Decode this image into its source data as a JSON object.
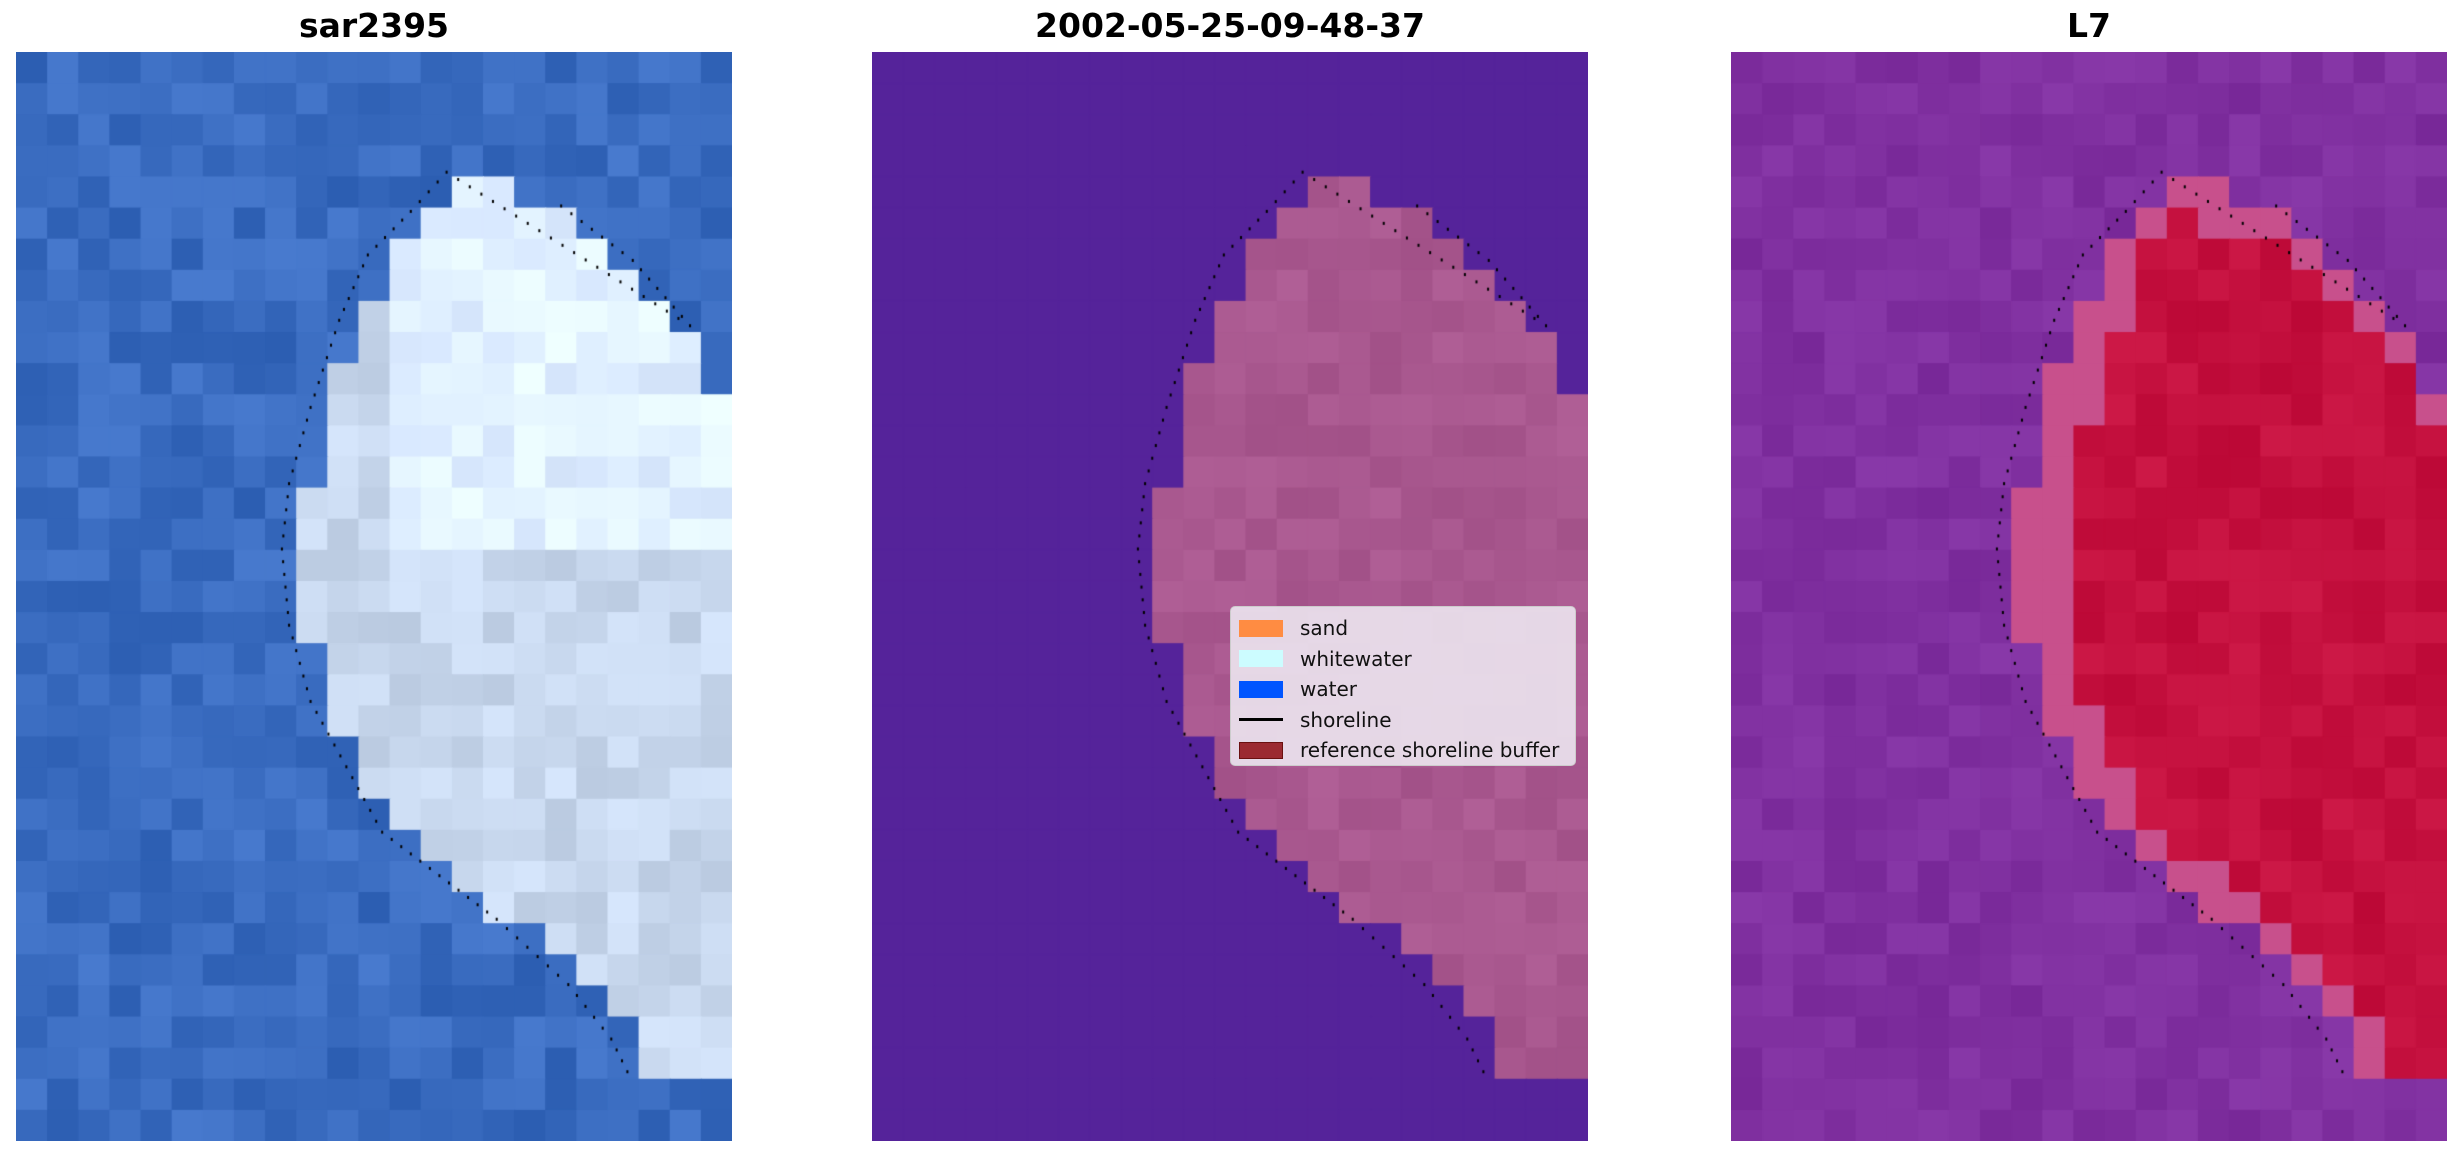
{
  "panels": [
    {
      "title": "sar2395",
      "palette": "rgb"
    },
    {
      "title": "2002-05-25-09-48-37",
      "palette": "classified"
    },
    {
      "title": "L7",
      "palette": "index"
    }
  ],
  "legend": {
    "items": [
      {
        "label": "sand",
        "color": "#ff8c42",
        "kind": "patch"
      },
      {
        "label": "whitewater",
        "color": "#ccfcff",
        "kind": "patch"
      },
      {
        "label": "water",
        "color": "#0055ff",
        "kind": "patch"
      },
      {
        "label": "shoreline",
        "color": "#000000",
        "kind": "line"
      },
      {
        "label": "reference shoreline buffer",
        "color": "#9b2a31",
        "kind": "patch"
      }
    ]
  },
  "colors": {
    "water_rgb": "#3a6cc0",
    "land_rgb": "#c8d8ee",
    "water_class": "#55239a",
    "land_class": "#a9588f",
    "water_index": "#8030a0",
    "land_index": "#c4103e"
  }
}
